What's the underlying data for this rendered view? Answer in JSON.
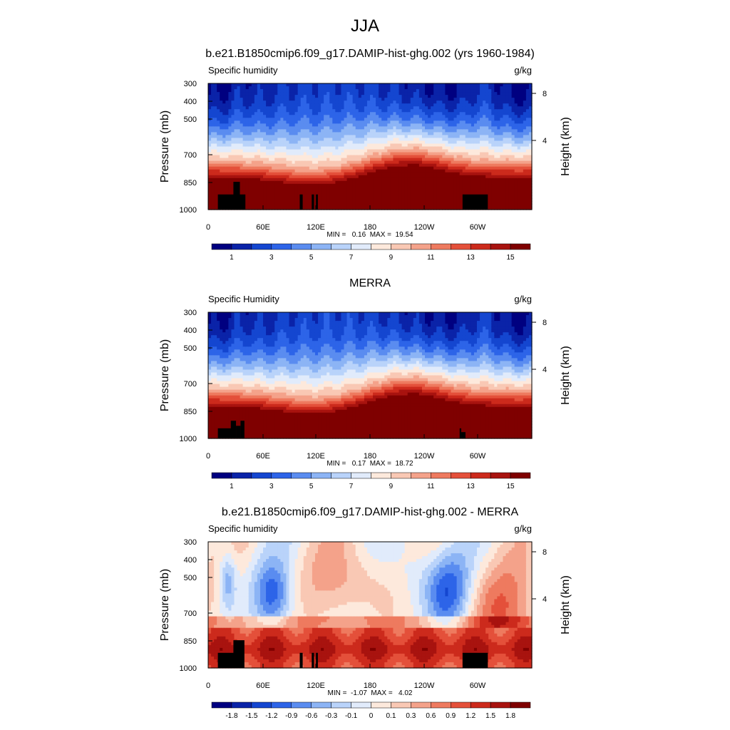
{
  "figure": {
    "title": "JJA"
  },
  "chart_data": [
    {
      "type": "heatmap",
      "title": "b.e21.B1850cmip6.f09_g17.DAMIP-hist-ghg.002 (yrs 1960-1984)",
      "left_label": "Specific humidity",
      "right_label": "g/kg",
      "ylabel": "Pressure (mb)",
      "ylabel_right": "Height (km)",
      "x_ticks": [
        "0",
        "60E",
        "120E",
        "180",
        "120W",
        "60W"
      ],
      "y_ticks": [
        "300",
        "400",
        "500",
        "700",
        "850",
        "1000"
      ],
      "height_ticks": [
        "8",
        "4"
      ],
      "stats": "MIN =   0.16  MAX =  19.54",
      "colorbar_labels": [
        "1",
        "3",
        "5",
        "7",
        "9",
        "11",
        "13",
        "15"
      ],
      "palette": "humidity",
      "xlim": [
        0,
        360
      ],
      "ylim_mb": [
        1000,
        300
      ]
    },
    {
      "type": "heatmap",
      "title": "MERRA",
      "left_label": "Specific Humidity",
      "right_label": "g/kg",
      "ylabel": "Pressure (mb)",
      "ylabel_right": "Height (km)",
      "x_ticks": [
        "0",
        "60E",
        "120E",
        "180",
        "120W",
        "60W"
      ],
      "y_ticks": [
        "300",
        "400",
        "500",
        "700",
        "850",
        "1000"
      ],
      "height_ticks": [
        "8",
        "4"
      ],
      "stats": "MIN =   0.17  MAX =  18.72",
      "colorbar_labels": [
        "1",
        "3",
        "5",
        "7",
        "9",
        "11",
        "13",
        "15"
      ],
      "palette": "humidity",
      "xlim": [
        0,
        360
      ],
      "ylim_mb": [
        1000,
        300
      ]
    },
    {
      "type": "heatmap",
      "title": "b.e21.B1850cmip6.f09_g17.DAMIP-hist-ghg.002 - MERRA",
      "left_label": "Specific humidity",
      "right_label": "g/kg",
      "ylabel": "Pressure (mb)",
      "ylabel_right": "Height (km)",
      "x_ticks": [
        "0",
        "60E",
        "120E",
        "180",
        "120W",
        "60W"
      ],
      "y_ticks": [
        "300",
        "400",
        "500",
        "700",
        "850",
        "1000"
      ],
      "height_ticks": [
        "8",
        "4"
      ],
      "stats": "MIN =  -1.07  MAX =   4.02",
      "colorbar_labels": [
        "-1.8",
        "-1.5",
        "-1.2",
        "-0.9",
        "-0.6",
        "-0.3",
        "-0.1",
        "0",
        "0.1",
        "0.3",
        "0.6",
        "0.9",
        "1.2",
        "1.5",
        "1.8"
      ],
      "palette": "difference",
      "xlim": [
        0,
        360
      ],
      "ylim_mb": [
        1000,
        300
      ]
    }
  ],
  "colors": {
    "humidity": [
      "#000080",
      "#0a23a8",
      "#1446d0",
      "#2d64e8",
      "#5a8cf0",
      "#8cb4f5",
      "#b9d3fa",
      "#e1ebfb",
      "#fde9dc",
      "#f9c8b4",
      "#f4a28a",
      "#ee7a5f",
      "#e4503a",
      "#cc2a1c",
      "#a8130f",
      "#7f0000"
    ],
    "difference": [
      "#000080",
      "#0a23a8",
      "#1446d0",
      "#2d64e8",
      "#5a8cf0",
      "#8cb4f5",
      "#b9d3fa",
      "#e1ebfb",
      "#fde9dc",
      "#f9c8b4",
      "#f4a28a",
      "#ee7a5f",
      "#e4503a",
      "#cc2a1c",
      "#a8130f",
      "#7f0000"
    ],
    "terrain": "#000000"
  }
}
